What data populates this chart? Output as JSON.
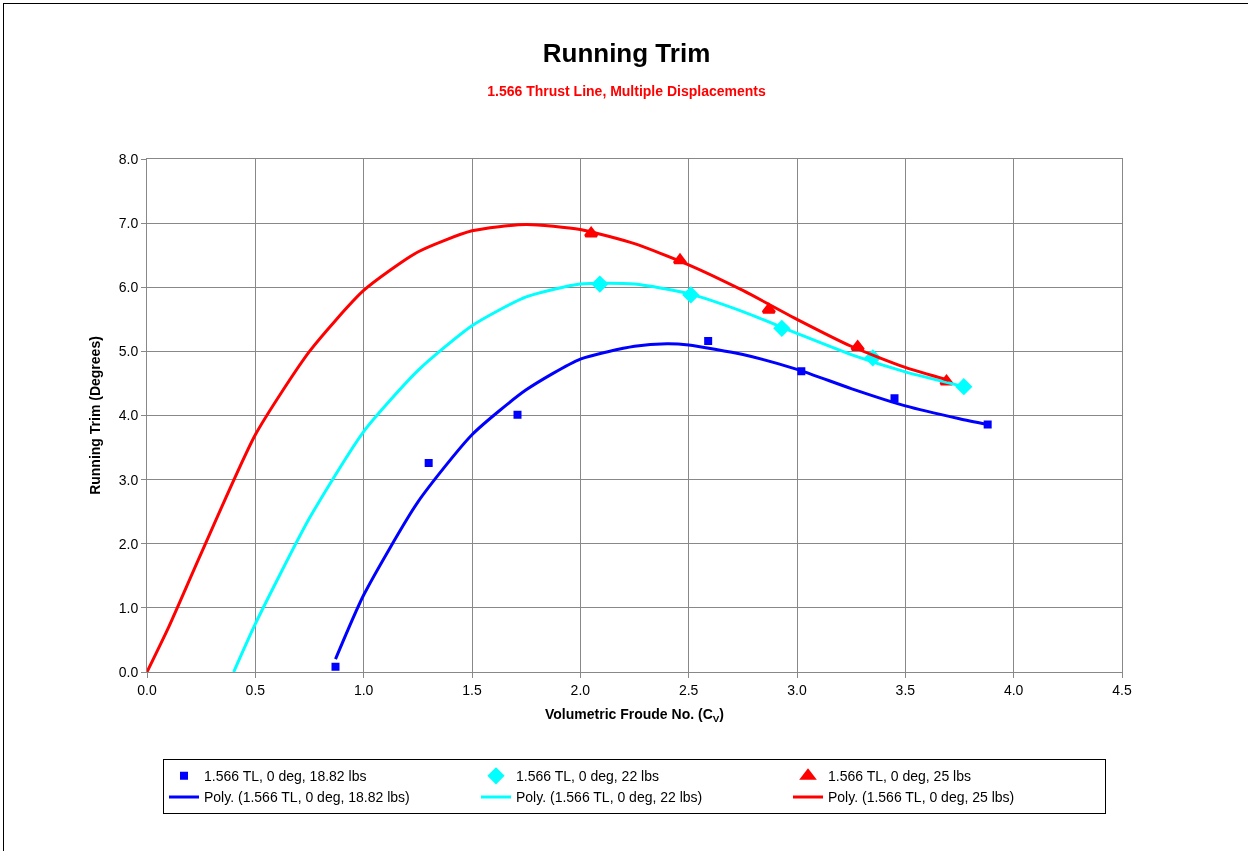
{
  "chart_data": {
    "type": "scatter",
    "title": "Running Trim",
    "subtitle": "1.566 Thrust Line, Multiple Displacements",
    "xlabel": "Volumetric Froude No. (C$_{V}$)",
    "ylabel": "Running Trim (Degrees)",
    "xlim": [
      0,
      4.5
    ],
    "xticks": [
      {
        "value": 0,
        "label": "0.0"
      },
      {
        "value": 0.5,
        "label": "0.5"
      },
      {
        "value": 1,
        "label": "1.0"
      },
      {
        "value": 1.5,
        "label": "1.5"
      },
      {
        "value": 2,
        "label": "2.0"
      },
      {
        "value": 2.5,
        "label": "2.5"
      },
      {
        "value": 3,
        "label": "3.0"
      },
      {
        "value": 3.5,
        "label": "3.5"
      },
      {
        "value": 4,
        "label": "4.0"
      },
      {
        "value": 4.5,
        "label": "4.5"
      }
    ],
    "ylim": [
      0,
      8
    ],
    "yticks": [
      {
        "value": 0,
        "label": "0.0"
      },
      {
        "value": 1,
        "label": "1.0"
      },
      {
        "value": 2,
        "label": "2.0"
      },
      {
        "value": 3,
        "label": "3.0"
      },
      {
        "value": 4,
        "label": "4.0"
      },
      {
        "value": 5,
        "label": "5.0"
      },
      {
        "value": 6,
        "label": "6.0"
      },
      {
        "value": 7,
        "label": "7.0"
      },
      {
        "value": 8,
        "label": "8.0"
      }
    ],
    "grid": true,
    "legend": "bottom",
    "series": [
      {
        "name": "1.566 TL, 0 deg, 18.82 lbs",
        "marker": "square",
        "color": "#0000ff",
        "x": [
          0.87,
          1.3,
          1.71,
          2.59,
          3.02,
          3.45,
          3.88
        ],
        "values": [
          0.08,
          3.26,
          4.01,
          5.16,
          4.69,
          4.27,
          3.86
        ]
      },
      {
        "name": "1.566 TL, 0 deg, 22 lbs",
        "marker": "diamond",
        "color": "#00ffff",
        "x": [
          2.09,
          2.51,
          2.93,
          3.35,
          3.77
        ],
        "values": [
          6.05,
          5.88,
          5.36,
          4.9,
          4.45
        ]
      },
      {
        "name": "1.566 TL, 0 deg, 25 lbs",
        "marker": "triangle",
        "color": "#ff0000",
        "x": [
          2.05,
          2.46,
          2.87,
          3.28,
          3.69
        ],
        "values": [
          6.84,
          6.42,
          5.65,
          5.07,
          4.53
        ]
      },
      {
        "name": "Poly. (1.566 TL, 0 deg, 18.82 lbs)",
        "type": "line",
        "marker": "none",
        "color": "#0000ff",
        "x": [
          0.87,
          1.0,
          1.25,
          1.5,
          1.75,
          2.0,
          2.25,
          2.4,
          2.5,
          2.75,
          3.0,
          3.25,
          3.5,
          3.75,
          3.88
        ],
        "values": [
          0.2,
          1.2,
          2.65,
          3.7,
          4.4,
          4.88,
          5.08,
          5.12,
          5.1,
          4.95,
          4.72,
          4.42,
          4.15,
          3.95,
          3.86
        ]
      },
      {
        "name": "Poly. (1.566 TL, 0 deg, 22 lbs)",
        "type": "line",
        "marker": "none",
        "color": "#00ffff",
        "x": [
          0.4,
          0.5,
          0.75,
          1.0,
          1.25,
          1.5,
          1.75,
          2.0,
          2.25,
          2.5,
          2.75,
          3.0,
          3.25,
          3.5,
          3.77
        ],
        "values": [
          0,
          0.75,
          2.4,
          3.75,
          4.7,
          5.4,
          5.85,
          6.05,
          6.05,
          5.9,
          5.62,
          5.28,
          4.95,
          4.68,
          4.45
        ]
      },
      {
        "name": "Poly. (1.566 TL, 0 deg, 25 lbs)",
        "type": "line",
        "marker": "none",
        "color": "#ff0000",
        "x": [
          0,
          0.1,
          0.25,
          0.5,
          0.75,
          1.0,
          1.25,
          1.5,
          1.75,
          2.0,
          2.25,
          2.5,
          2.75,
          3.0,
          3.25,
          3.5,
          3.7
        ],
        "values": [
          0,
          0.7,
          1.85,
          3.7,
          5.0,
          5.95,
          6.55,
          6.88,
          6.98,
          6.9,
          6.68,
          6.35,
          5.95,
          5.5,
          5.08,
          4.75,
          4.55
        ]
      }
    ]
  }
}
